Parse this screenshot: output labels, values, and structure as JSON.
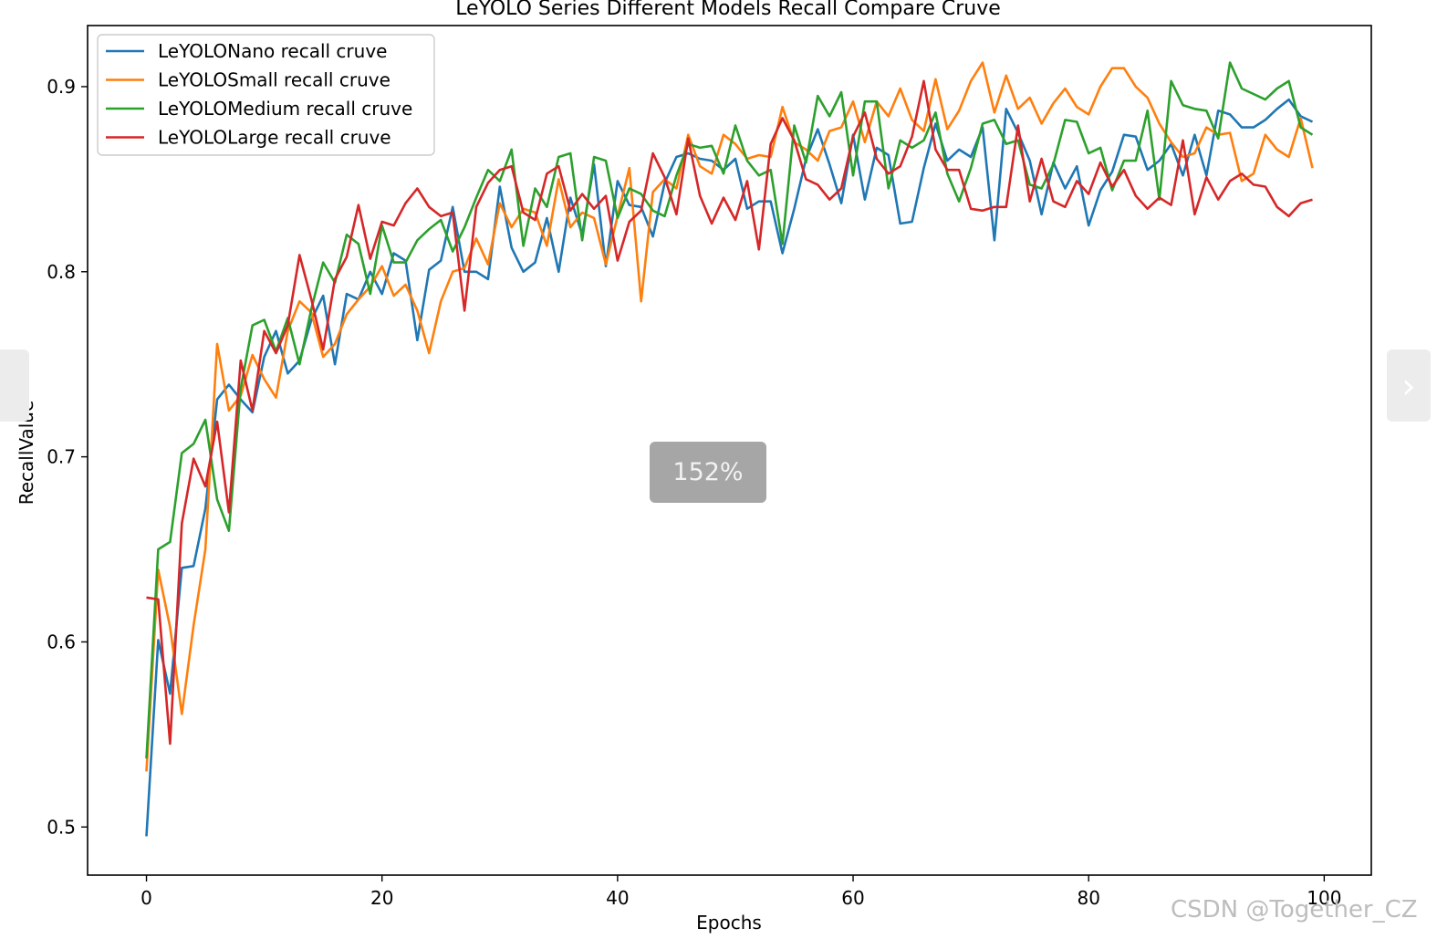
{
  "viewer": {
    "zoom_label": "152%",
    "prev_icon": "chevron-left-icon",
    "next_icon": "chevron-right-icon",
    "next_glyph": "›",
    "watermark": "CSDN @Together_CZ"
  },
  "chart_data": {
    "type": "line",
    "title": "LeYOLO Series Different Models Recall Compare Cruve",
    "xlabel": "Epochs",
    "ylabel": "RecallValue",
    "xlim": [
      -5,
      104
    ],
    "ylim": [
      0.474,
      0.933
    ],
    "xticks": [
      0,
      20,
      40,
      60,
      80,
      100
    ],
    "yticks": [
      0.5,
      0.6,
      0.7,
      0.8,
      0.9
    ],
    "xtick_labels": [
      "0",
      "20",
      "40",
      "60",
      "80",
      "100"
    ],
    "ytick_labels": [
      "0.5",
      "0.6",
      "0.7",
      "0.8",
      "0.9"
    ],
    "grid": false,
    "legend_position": "top-left",
    "x": [
      0,
      1,
      2,
      3,
      4,
      5,
      6,
      7,
      8,
      9,
      10,
      11,
      12,
      13,
      14,
      15,
      16,
      17,
      18,
      19,
      20,
      21,
      22,
      23,
      24,
      25,
      26,
      27,
      28,
      29,
      30,
      31,
      32,
      33,
      34,
      35,
      36,
      37,
      38,
      39,
      40,
      41,
      42,
      43,
      44,
      45,
      46,
      47,
      48,
      49,
      50,
      51,
      52,
      53,
      54,
      55,
      56,
      57,
      58,
      59,
      60,
      61,
      62,
      63,
      64,
      65,
      66,
      67,
      68,
      69,
      70,
      71,
      72,
      73,
      74,
      75,
      76,
      77,
      78,
      79,
      80,
      81,
      82,
      83,
      84,
      85,
      86,
      87,
      88,
      89,
      90,
      91,
      92,
      93,
      94,
      95,
      96,
      97,
      98,
      99
    ],
    "series": [
      {
        "name": "LeYOLONano recall cruve",
        "color": "#1f77b4",
        "values": [
          0.495,
          0.601,
          0.572,
          0.64,
          0.641,
          0.672,
          0.731,
          0.739,
          0.731,
          0.724,
          0.754,
          0.768,
          0.745,
          0.752,
          0.774,
          0.787,
          0.75,
          0.788,
          0.785,
          0.8,
          0.788,
          0.81,
          0.806,
          0.763,
          0.801,
          0.806,
          0.835,
          0.8,
          0.8,
          0.796,
          0.846,
          0.813,
          0.8,
          0.805,
          0.829,
          0.8,
          0.84,
          0.82,
          0.858,
          0.803,
          0.849,
          0.836,
          0.835,
          0.819,
          0.848,
          0.862,
          0.864,
          0.861,
          0.86,
          0.855,
          0.861,
          0.834,
          0.838,
          0.838,
          0.81,
          0.834,
          0.861,
          0.877,
          0.858,
          0.837,
          0.874,
          0.839,
          0.867,
          0.863,
          0.826,
          0.827,
          0.856,
          0.88,
          0.86,
          0.866,
          0.862,
          0.878,
          0.817,
          0.888,
          0.875,
          0.86,
          0.831,
          0.859,
          0.845,
          0.857,
          0.825,
          0.844,
          0.854,
          0.874,
          0.873,
          0.855,
          0.86,
          0.869,
          0.852,
          0.874,
          0.852,
          0.887,
          0.885,
          0.878,
          0.878,
          0.882,
          0.888,
          0.893,
          0.884,
          0.881
        ]
      },
      {
        "name": "LeYOLOSmall recall cruve",
        "color": "#ff7f0e",
        "values": [
          0.53,
          0.639,
          0.608,
          0.561,
          0.609,
          0.65,
          0.761,
          0.725,
          0.733,
          0.755,
          0.742,
          0.732,
          0.768,
          0.784,
          0.778,
          0.754,
          0.761,
          0.777,
          0.785,
          0.792,
          0.803,
          0.787,
          0.793,
          0.779,
          0.756,
          0.784,
          0.8,
          0.802,
          0.818,
          0.804,
          0.837,
          0.824,
          0.834,
          0.832,
          0.814,
          0.85,
          0.824,
          0.832,
          0.829,
          0.804,
          0.83,
          0.856,
          0.784,
          0.843,
          0.85,
          0.845,
          0.874,
          0.857,
          0.853,
          0.874,
          0.869,
          0.861,
          0.863,
          0.862,
          0.889,
          0.87,
          0.866,
          0.86,
          0.876,
          0.878,
          0.892,
          0.87,
          0.892,
          0.884,
          0.899,
          0.882,
          0.876,
          0.904,
          0.877,
          0.887,
          0.903,
          0.913,
          0.886,
          0.906,
          0.888,
          0.894,
          0.88,
          0.891,
          0.899,
          0.889,
          0.885,
          0.9,
          0.91,
          0.91,
          0.9,
          0.894,
          0.88,
          0.87,
          0.862,
          0.864,
          0.878,
          0.874,
          0.875,
          0.849,
          0.853,
          0.874,
          0.866,
          0.862,
          0.883,
          0.856
        ]
      },
      {
        "name": "LeYOLOMedium recall cruve",
        "color": "#2ca02c",
        "values": [
          0.537,
          0.65,
          0.654,
          0.702,
          0.707,
          0.72,
          0.677,
          0.66,
          0.737,
          0.771,
          0.774,
          0.757,
          0.775,
          0.75,
          0.78,
          0.805,
          0.794,
          0.82,
          0.815,
          0.788,
          0.825,
          0.805,
          0.805,
          0.817,
          0.823,
          0.828,
          0.811,
          0.824,
          0.84,
          0.855,
          0.849,
          0.866,
          0.814,
          0.845,
          0.835,
          0.862,
          0.864,
          0.817,
          0.862,
          0.86,
          0.829,
          0.845,
          0.842,
          0.833,
          0.83,
          0.852,
          0.869,
          0.867,
          0.868,
          0.853,
          0.879,
          0.86,
          0.852,
          0.855,
          0.815,
          0.879,
          0.859,
          0.895,
          0.884,
          0.897,
          0.852,
          0.892,
          0.892,
          0.845,
          0.871,
          0.867,
          0.871,
          0.886,
          0.853,
          0.838,
          0.856,
          0.88,
          0.882,
          0.869,
          0.871,
          0.847,
          0.845,
          0.858,
          0.882,
          0.881,
          0.864,
          0.867,
          0.844,
          0.86,
          0.86,
          0.887,
          0.839,
          0.903,
          0.89,
          0.888,
          0.887,
          0.872,
          0.913,
          0.899,
          0.896,
          0.893,
          0.899,
          0.903,
          0.878,
          0.874
        ]
      },
      {
        "name": "LeYOLOLarge recall cruve",
        "color": "#d62728",
        "values": [
          0.624,
          0.623,
          0.545,
          0.664,
          0.699,
          0.684,
          0.719,
          0.67,
          0.752,
          0.725,
          0.768,
          0.756,
          0.771,
          0.809,
          0.785,
          0.758,
          0.796,
          0.808,
          0.836,
          0.807,
          0.827,
          0.825,
          0.837,
          0.845,
          0.835,
          0.83,
          0.832,
          0.779,
          0.835,
          0.848,
          0.855,
          0.857,
          0.832,
          0.828,
          0.853,
          0.857,
          0.833,
          0.842,
          0.834,
          0.841,
          0.806,
          0.827,
          0.833,
          0.864,
          0.851,
          0.831,
          0.872,
          0.841,
          0.826,
          0.84,
          0.828,
          0.849,
          0.812,
          0.869,
          0.883,
          0.871,
          0.85,
          0.847,
          0.839,
          0.845,
          0.873,
          0.886,
          0.861,
          0.853,
          0.857,
          0.873,
          0.903,
          0.866,
          0.855,
          0.855,
          0.834,
          0.833,
          0.835,
          0.835,
          0.879,
          0.838,
          0.861,
          0.838,
          0.835,
          0.849,
          0.842,
          0.859,
          0.846,
          0.855,
          0.841,
          0.834,
          0.84,
          0.836,
          0.871,
          0.831,
          0.851,
          0.839,
          0.849,
          0.853,
          0.847,
          0.846,
          0.835,
          0.83,
          0.837,
          0.839
        ]
      }
    ]
  }
}
